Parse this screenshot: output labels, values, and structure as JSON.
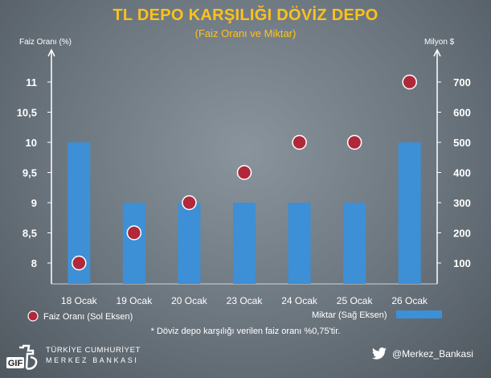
{
  "title": "TL DEPO KARŞILIĞI DÖVİZ DEPO",
  "subtitle": "(Faiz Oranı ve Miktar)",
  "left_axis_title": "Faiz Oranı (%)",
  "right_axis_title": "Milyon $",
  "legend": {
    "rate_label": "Faiz Oranı (Sol Eksen)",
    "amount_label": "Miktar (Sağ Eksen)"
  },
  "footnote": "* Döviz depo karşılığı verilen faiz oranı %0,75'tir.",
  "footer": {
    "logo_letters": "TCMB",
    "gif_badge": "GIF",
    "org_line1": "TÜRKİYE CUMHURİYET",
    "org_line2": "MERKEZ BANKASI",
    "twitter_handle": "@Merkez_Bankasi",
    "twitter_icon": "twitter-bird-icon"
  },
  "colors": {
    "title": "#ffc21a",
    "bar": "#3d8fd6",
    "dot": "#b0283a",
    "dot_ring": "#ffffff"
  },
  "chart_data": {
    "type": "bar",
    "categories": [
      "18 Ocak",
      "19 Ocak",
      "20 Ocak",
      "23 Ocak",
      "24 Ocak",
      "25 Ocak",
      "26 Ocak"
    ],
    "series": [
      {
        "name": "Miktar (Sağ Eksen)",
        "type": "bar",
        "axis": "right",
        "values": [
          500,
          300,
          300,
          300,
          300,
          300,
          500
        ]
      },
      {
        "name": "Faiz Oranı (Sol Eksen)",
        "type": "scatter",
        "axis": "left",
        "values": [
          8.0,
          8.5,
          9.0,
          9.5,
          10.0,
          10.0,
          11.0
        ]
      }
    ],
    "left_axis": {
      "label": "Faiz Oranı (%)",
      "ticks": [
        "8",
        "8,5",
        "9",
        "9,5",
        "10",
        "10,5",
        "11"
      ],
      "tick_values": [
        8,
        8.5,
        9,
        9.5,
        10,
        10.5,
        11
      ],
      "range": [
        7.5,
        11.5
      ]
    },
    "right_axis": {
      "label": "Milyon $",
      "ticks": [
        "100",
        "200",
        "300",
        "400",
        "500",
        "600",
        "700"
      ],
      "tick_values": [
        100,
        200,
        300,
        400,
        500,
        600,
        700
      ],
      "range": [
        0,
        800
      ]
    },
    "grid": false,
    "legend_position": "bottom"
  }
}
